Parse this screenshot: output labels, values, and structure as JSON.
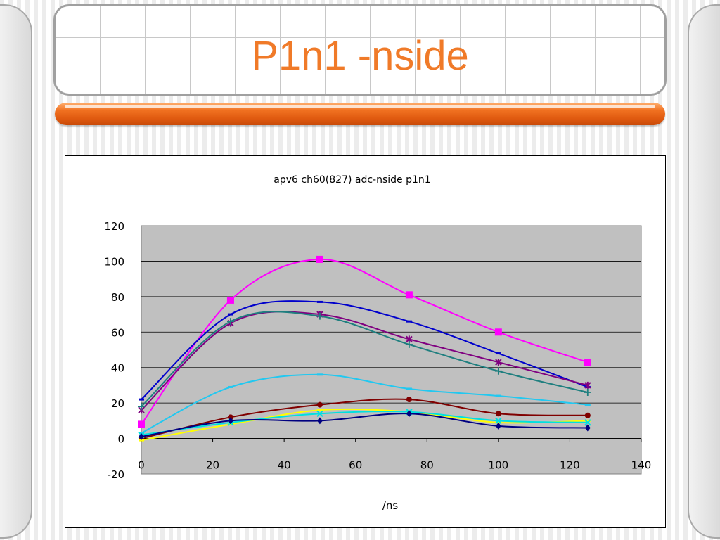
{
  "slide": {
    "title": "P1n1 -nside"
  },
  "chart_data": {
    "type": "scatter",
    "title": "apv6 ch60(827) adc-nside p1n1",
    "xlabel": "/ns",
    "ylabel": "",
    "xlim": [
      0,
      140
    ],
    "ylim": [
      -20,
      120
    ],
    "xticks": [
      0,
      20,
      40,
      60,
      80,
      100,
      120,
      140
    ],
    "yticks": [
      -20,
      0,
      20,
      40,
      60,
      80,
      100,
      120
    ],
    "grid": "horizontal",
    "plot_background": "#c0c0c0",
    "line_style": "smooth",
    "x": [
      0,
      25,
      50,
      75,
      100,
      125
    ],
    "series": [
      {
        "color": "#ff00ff",
        "marker": "square",
        "values": [
          8,
          78,
          101,
          81,
          60,
          43
        ]
      },
      {
        "color": "#0000cc",
        "marker": "dash",
        "values": [
          22,
          70,
          77,
          66,
          48,
          29
        ]
      },
      {
        "color": "#800080",
        "marker": "star",
        "values": [
          16,
          65,
          70,
          56,
          43,
          30
        ]
      },
      {
        "color": "#1f7f7f",
        "marker": "plus",
        "values": [
          18,
          66,
          69,
          53,
          38,
          26
        ]
      },
      {
        "color": "#22c8f0",
        "marker": "dash",
        "values": [
          3,
          29,
          36,
          28,
          24,
          19
        ]
      },
      {
        "color": "#800000",
        "marker": "circle",
        "values": [
          0,
          12,
          19,
          22,
          14,
          13
        ]
      },
      {
        "color": "#ffff00",
        "marker": "dash",
        "values": [
          -1,
          8,
          16,
          15,
          9,
          10
        ]
      },
      {
        "color": "#00e0e0",
        "marker": "x",
        "values": [
          2,
          9,
          14,
          15,
          10,
          9
        ]
      },
      {
        "color": "#000080",
        "marker": "diamond",
        "values": [
          1,
          10,
          10,
          14,
          7,
          6
        ]
      }
    ]
  }
}
